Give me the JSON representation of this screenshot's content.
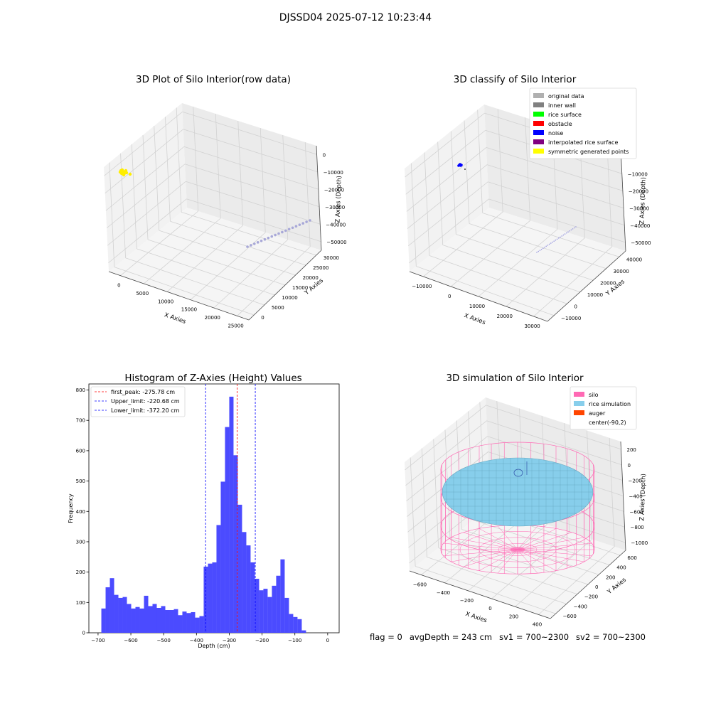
{
  "suptitle": "DJSSD04 2025-07-12 10:23:44",
  "footer": {
    "flag": "flag = 0",
    "avg_depth": "avgDepth = 243 cm",
    "sv1": "sv1 = 700~2300",
    "sv2": "sv2 = 700~2300"
  },
  "colors": {
    "histogram_bar": "#4b4bff",
    "peak_line": "#ff0000",
    "limit_line": "#0000ff",
    "raw_points": "#ffee00",
    "raw_line_points": "#a8a8d8",
    "silo": "#ff69b4",
    "rice": "#87ceeb",
    "auger": "#ff4500"
  },
  "chart_data": [
    {
      "type": "scatter3d",
      "title": "3D Plot of Silo Interior(row data)",
      "xlabel": "X Axies",
      "ylabel": "Y Axies",
      "zlabel": "Z Axies (Depth)",
      "x_ticks": [
        "0",
        "5000",
        "10000",
        "15000",
        "20000",
        "25000"
      ],
      "y_ticks": [
        "0",
        "5000",
        "10000",
        "15000",
        "20000",
        "25000",
        "30000"
      ],
      "z_ticks": [
        "0",
        "−10000",
        "−20000",
        "−30000",
        "−40000",
        "−50000"
      ],
      "grid": true
    },
    {
      "type": "scatter3d",
      "title": "3D classify of Silo Interior",
      "xlabel": "X Axies",
      "ylabel": "Y Axies",
      "zlabel": "Z Axies (Depth)",
      "x_ticks": [
        "−10000",
        "0",
        "10000",
        "20000",
        "30000"
      ],
      "y_ticks": [
        "−10000",
        "0",
        "10000",
        "20000",
        "30000",
        "40000"
      ],
      "z_ticks": [
        "0",
        "−10000",
        "−20000",
        "−30000",
        "−40000",
        "−50000"
      ],
      "legend_position": "top-right",
      "legend": [
        {
          "label": "original data",
          "color": "#b0b0b0"
        },
        {
          "label": "inner wall",
          "color": "#808080"
        },
        {
          "label": "rice surface",
          "color": "#00ff00"
        },
        {
          "label": "obstacle",
          "color": "#ff0000"
        },
        {
          "label": "noise",
          "color": "#0000ff"
        },
        {
          "label": "interpolated rice surface",
          "color": "#800080"
        },
        {
          "label": "symmetric generated points",
          "color": "#ffff00"
        }
      ],
      "grid": true
    },
    {
      "type": "bar",
      "title": "Histogram of Z-Axies (Height) Values",
      "xlabel": "Depth (cm)",
      "ylabel": "Frequency",
      "xlim": [
        -700,
        0
      ],
      "ylim": [
        0,
        820
      ],
      "x_ticks": [
        -700,
        -600,
        -500,
        -400,
        -300,
        -200,
        -100,
        0
      ],
      "y_ticks": [
        0,
        100,
        200,
        300,
        400,
        500,
        600,
        700,
        800
      ],
      "bin_start": -690,
      "bin_width": 13,
      "values": [
        80,
        150,
        180,
        125,
        115,
        118,
        95,
        80,
        85,
        80,
        122,
        88,
        95,
        82,
        88,
        75,
        75,
        78,
        58,
        70,
        65,
        68,
        50,
        55,
        218,
        228,
        232,
        355,
        498,
        678,
        778,
        585,
        422,
        332,
        288,
        232,
        178,
        140,
        145,
        118,
        155,
        188,
        242,
        115,
        62,
        52,
        45,
        8
      ],
      "vlines": [
        {
          "label": "first_peak: -275.78 cm",
          "x": -275.78,
          "kind": "peak"
        },
        {
          "label": "Upper_limit: -220.68 cm",
          "x": -220.68,
          "kind": "limit"
        },
        {
          "label": "Lower_limit: -372.20 cm",
          "x": -372.2,
          "kind": "limit"
        }
      ],
      "legend_position": "top-left"
    },
    {
      "type": "surface3d",
      "title": "3D simulation of Silo Interior",
      "xlabel": "X Axies",
      "ylabel": "Y Axies",
      "zlabel": "Z Axies (Depth)",
      "x_ticks": [
        "−600",
        "−400",
        "−200",
        "0",
        "200",
        "400"
      ],
      "y_ticks": [
        "−600",
        "−400",
        "−200",
        "0",
        "200",
        "400",
        "600"
      ],
      "z_ticks": [
        "200",
        "0",
        "−200",
        "−400",
        "−600",
        "−800",
        "−1000"
      ],
      "legend_position": "top-right",
      "legend": [
        {
          "label": "silo",
          "color": "#ff69b4"
        },
        {
          "label": "rice simulation",
          "color": "#87ceeb"
        },
        {
          "label": "auger",
          "color": "#ff4500"
        },
        {
          "label": "center(-90,2)",
          "color": ""
        }
      ],
      "grid": true
    }
  ]
}
